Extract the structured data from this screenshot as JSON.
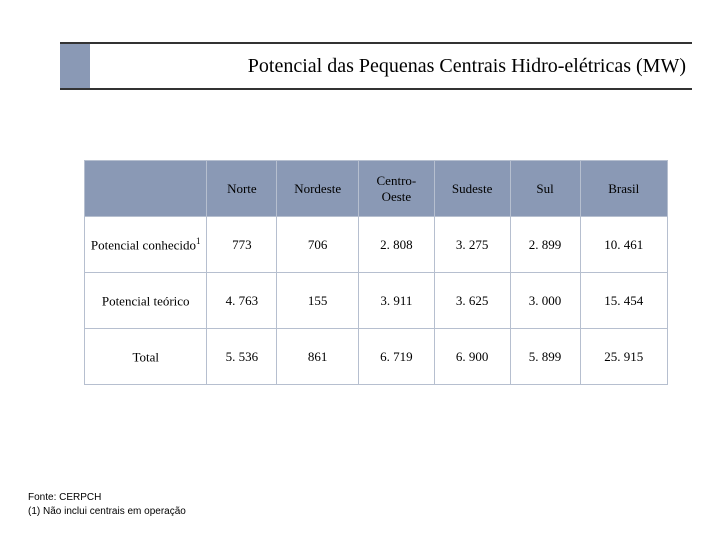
{
  "title": "Potencial das Pequenas Centrais Hidro-elétricas (MW)",
  "title_fontsize": 20,
  "accent_color": "#8a99b5",
  "rule_color": "#333333",
  "table": {
    "header_bg": "#8a99b5",
    "border_color": "#b6bfcf",
    "cell_bg": "#ffffff",
    "columns": [
      "",
      "Norte",
      "Nordeste",
      "Centro-Oeste",
      "Sudeste",
      "Sul",
      "Brasil"
    ],
    "column_widths_pct": [
      21,
      12,
      14,
      13,
      13,
      12,
      15
    ],
    "rows": [
      {
        "label": "Potencial conhecido",
        "sup": "1",
        "values": [
          "773",
          "706",
          "2. 808",
          "3. 275",
          "2. 899",
          "10. 461"
        ]
      },
      {
        "label": "Potencial teórico",
        "sup": "",
        "values": [
          "4. 763",
          "155",
          "3. 911",
          "3. 625",
          "3. 000",
          "15. 454"
        ]
      },
      {
        "label": "Total",
        "sup": "",
        "values": [
          "5. 536",
          "861",
          "6. 719",
          "6. 900",
          "5. 899",
          "25. 915"
        ]
      }
    ],
    "header_fontsize": 13,
    "cell_fontsize": 13
  },
  "footer": {
    "line1": "Fonte: CERPCH",
    "line2": "(1) Não inclui centrais em operação",
    "fontsize": 10
  }
}
